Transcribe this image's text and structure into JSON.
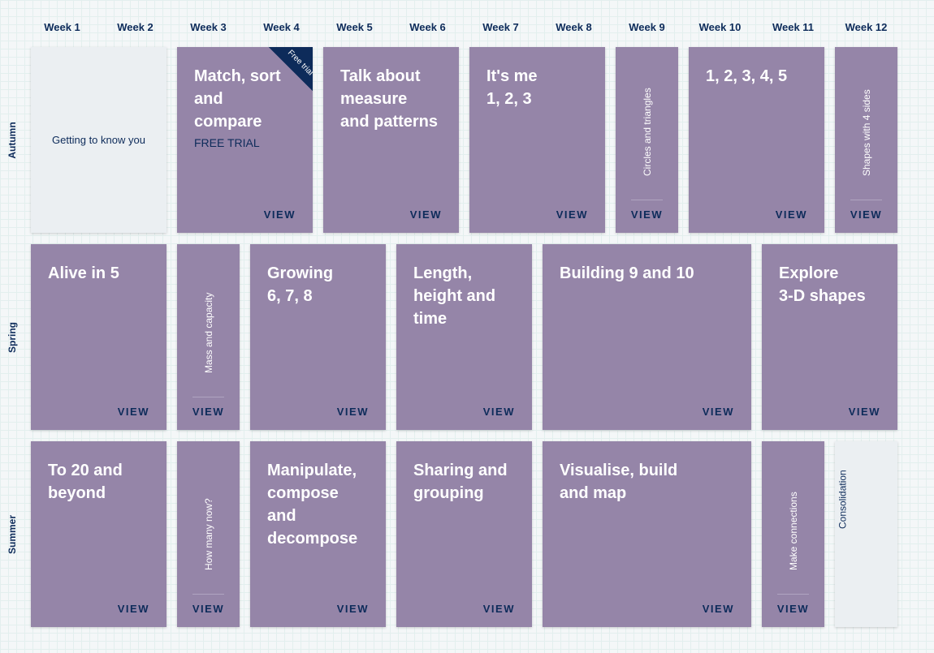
{
  "weeks": [
    "Week 1",
    "Week 2",
    "Week 3",
    "Week 4",
    "Week 5",
    "Week 6",
    "Week 7",
    "Week 8",
    "Week 9",
    "Week 10",
    "Week 11",
    "Week 12"
  ],
  "terms": [
    "Autumn",
    "Spring",
    "Summer"
  ],
  "colors": {
    "card": "#9585a8",
    "grey_card": "#ebeff2",
    "navy": "#0d2b5a"
  },
  "view_label": "VIEW",
  "units": [
    {
      "term": 1,
      "start_week": 1,
      "weeks": 2,
      "title": "Getting to know you",
      "style": "grey-center"
    },
    {
      "term": 1,
      "start_week": 3,
      "weeks": 2,
      "title": "Match, sort\nand\ncompare",
      "subtitle": "FREE TRIAL",
      "ribbon": "Free trial"
    },
    {
      "term": 1,
      "start_week": 5,
      "weeks": 2,
      "title": "Talk about\nmeasure\nand patterns"
    },
    {
      "term": 1,
      "start_week": 7,
      "weeks": 2,
      "title": "It's me\n1, 2, 3"
    },
    {
      "term": 1,
      "start_week": 9,
      "weeks": 1,
      "title": "Circles and triangles",
      "style": "vertical"
    },
    {
      "term": 1,
      "start_week": 10,
      "weeks": 2,
      "title": "1, 2, 3, 4, 5"
    },
    {
      "term": 1,
      "start_week": 12,
      "weeks": 1,
      "title": "Shapes with 4 sides",
      "style": "vertical"
    },
    {
      "term": 2,
      "start_week": 1,
      "weeks": 2,
      "title": "Alive in 5"
    },
    {
      "term": 2,
      "start_week": 3,
      "weeks": 1,
      "title": "Mass and capacity",
      "style": "vertical"
    },
    {
      "term": 2,
      "start_week": 4,
      "weeks": 2,
      "title": "Growing\n6, 7, 8"
    },
    {
      "term": 2,
      "start_week": 6,
      "weeks": 2,
      "title": "Length,\nheight and\ntime"
    },
    {
      "term": 2,
      "start_week": 8,
      "weeks": 3,
      "title": "Building 9 and 10"
    },
    {
      "term": 2,
      "start_week": 11,
      "weeks": 2,
      "title": "Explore\n3-D shapes"
    },
    {
      "term": 3,
      "start_week": 1,
      "weeks": 2,
      "title": "To 20 and\nbeyond"
    },
    {
      "term": 3,
      "start_week": 3,
      "weeks": 1,
      "title": "How many now?",
      "style": "vertical"
    },
    {
      "term": 3,
      "start_week": 4,
      "weeks": 2,
      "title": "Manipulate,\ncompose\nand\ndecompose"
    },
    {
      "term": 3,
      "start_week": 6,
      "weeks": 2,
      "title": "Sharing and\ngrouping"
    },
    {
      "term": 3,
      "start_week": 8,
      "weeks": 3,
      "title": "Visualise, build\nand map"
    },
    {
      "term": 3,
      "start_week": 11,
      "weeks": 1,
      "title": "Make connections",
      "style": "vertical"
    },
    {
      "term": 3,
      "start_week": 12,
      "weeks": 1,
      "title": "Consolidation",
      "style": "grey-vertical"
    }
  ]
}
